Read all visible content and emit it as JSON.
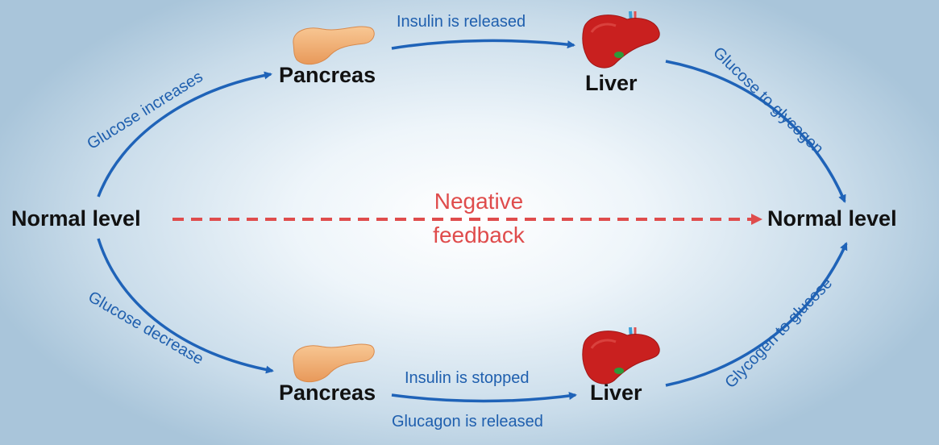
{
  "nodes": {
    "left_normal": "Normal level",
    "right_normal": "Normal level",
    "pancreas_top": "Pancreas",
    "liver_top": "Liver",
    "pancreas_bottom": "Pancreas",
    "liver_bottom": "Liver"
  },
  "labels": {
    "glucose_increases": "Glucose increases",
    "insulin_released": "Insulin is released",
    "glucose_to_glycogen": "Glucose to glycogen",
    "glucose_decrease": "Glucose decrease",
    "insulin_stopped": "Insulin is stopped",
    "glucagon_released": "Glucagon is released",
    "glycogen_to_glucose": "Glycogen to glucose"
  },
  "center": {
    "line1": "Negative",
    "line2": "feedback"
  },
  "icons": [
    "pancreas-icon",
    "liver-icon"
  ],
  "colors": {
    "arrow": "#1f63b8",
    "feedback": "#df4c4c",
    "pancreas": "#f2b27a",
    "liver": "#c9201f"
  }
}
